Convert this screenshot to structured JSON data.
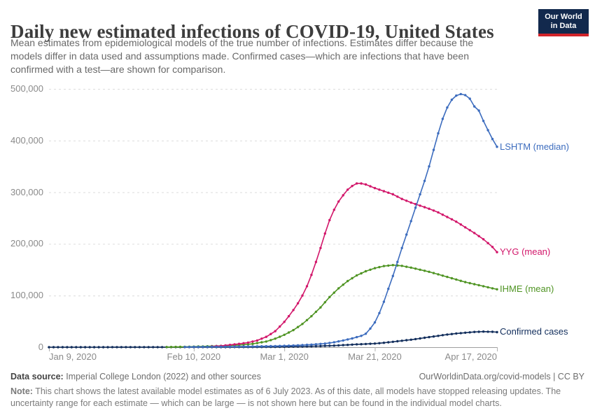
{
  "header": {
    "title": "Daily new estimated infections of COVID-19, United States",
    "subtitle_lines": [
      "Mean estimates from epidemiological models of the true number of infections. Estimates differ because the",
      "models differ in data used and assumptions made. Confirmed cases—which are infections that have been",
      "confirmed with a test—are shown for comparison."
    ],
    "logo": {
      "line1": "Our World",
      "line2": "in Data"
    }
  },
  "chart_data": {
    "type": "line",
    "title": "Daily new estimated infections of COVID-19, United States",
    "xlabel": "",
    "ylabel": "",
    "x_start_date": "Jan 9, 2020",
    "x_end_date": "Apr 17, 2020",
    "x_axis": {
      "ticks": [
        {
          "label": "Jan 9, 2020",
          "day": 0,
          "align": "left"
        },
        {
          "label": "Feb 10, 2020",
          "day": 32,
          "align": "center"
        },
        {
          "label": "Mar 1, 2020",
          "day": 52,
          "align": "center"
        },
        {
          "label": "Mar 21, 2020",
          "day": 72,
          "align": "center"
        },
        {
          "label": "Apr 17, 2020",
          "day": 99,
          "align": "right"
        }
      ]
    },
    "y_axis": {
      "range": [
        0,
        500000
      ],
      "ticks": [
        {
          "label": "0",
          "value": 0
        },
        {
          "label": "100,000",
          "value": 100000
        },
        {
          "label": "200,000",
          "value": 200000
        },
        {
          "label": "300,000",
          "value": 300000
        },
        {
          "label": "400,000",
          "value": 400000
        },
        {
          "label": "500,000",
          "value": 500000
        }
      ],
      "gridlines": "dashed"
    },
    "legend_position": "right-end-labels",
    "series": [
      {
        "name": "Confirmed cases",
        "color": "#122e5c",
        "points": [
          [
            0,
            50
          ],
          [
            10,
            60
          ],
          [
            20,
            80
          ],
          [
            30,
            120
          ],
          [
            35,
            150
          ],
          [
            40,
            200
          ],
          [
            45,
            300
          ],
          [
            50,
            600
          ],
          [
            55,
            1200
          ],
          [
            60,
            2200
          ],
          [
            64,
            3500
          ],
          [
            68,
            5500
          ],
          [
            72,
            7000
          ],
          [
            74,
            8500
          ],
          [
            76,
            10500
          ],
          [
            78,
            12500
          ],
          [
            80,
            14500
          ],
          [
            82,
            17000
          ],
          [
            84,
            19500
          ],
          [
            86,
            22000
          ],
          [
            88,
            24500
          ],
          [
            90,
            26500
          ],
          [
            92,
            28000
          ],
          [
            94,
            29500
          ],
          [
            96,
            30200
          ],
          [
            98,
            29800
          ],
          [
            99,
            29200
          ]
        ]
      },
      {
        "name": "IHME (mean)",
        "color": "#4f9423",
        "points": [
          [
            26,
            300
          ],
          [
            30,
            800
          ],
          [
            34,
            1500
          ],
          [
            38,
            2600
          ],
          [
            42,
            4200
          ],
          [
            45,
            6500
          ],
          [
            48,
            11000
          ],
          [
            50,
            16500
          ],
          [
            52,
            24000
          ],
          [
            54,
            33000
          ],
          [
            56,
            45000
          ],
          [
            58,
            60000
          ],
          [
            60,
            77000
          ],
          [
            62,
            97000
          ],
          [
            64,
            114000
          ],
          [
            66,
            128000
          ],
          [
            68,
            139000
          ],
          [
            70,
            147000
          ],
          [
            72,
            153000
          ],
          [
            74,
            157000
          ],
          [
            76,
            159000
          ],
          [
            78,
            157500
          ],
          [
            80,
            154000
          ],
          [
            82,
            150000
          ],
          [
            84,
            146000
          ],
          [
            86,
            141000
          ],
          [
            88,
            136000
          ],
          [
            90,
            131000
          ],
          [
            92,
            126000
          ],
          [
            94,
            122000
          ],
          [
            96,
            118000
          ],
          [
            98,
            114000
          ],
          [
            99,
            112000
          ]
        ]
      },
      {
        "name": "YYG (mean)",
        "color": "#d2166a",
        "points": [
          [
            36,
            1500
          ],
          [
            38,
            2500
          ],
          [
            40,
            4500
          ],
          [
            42,
            6500
          ],
          [
            44,
            9000
          ],
          [
            46,
            13000
          ],
          [
            48,
            20000
          ],
          [
            50,
            31000
          ],
          [
            52,
            49000
          ],
          [
            53,
            60000
          ],
          [
            54,
            72000
          ],
          [
            55,
            85000
          ],
          [
            56,
            100000
          ],
          [
            57,
            118000
          ],
          [
            58,
            140000
          ],
          [
            59,
            165000
          ],
          [
            60,
            192000
          ],
          [
            61,
            220000
          ],
          [
            62,
            246000
          ],
          [
            63,
            266000
          ],
          [
            64,
            282000
          ],
          [
            65,
            294000
          ],
          [
            66,
            305000
          ],
          [
            67,
            312000
          ],
          [
            68,
            317000
          ],
          [
            69,
            317000
          ],
          [
            70,
            315000
          ],
          [
            72,
            308000
          ],
          [
            74,
            302000
          ],
          [
            76,
            296000
          ],
          [
            78,
            287000
          ],
          [
            80,
            280000
          ],
          [
            82,
            274000
          ],
          [
            84,
            268000
          ],
          [
            86,
            261000
          ],
          [
            88,
            252000
          ],
          [
            90,
            243000
          ],
          [
            92,
            232000
          ],
          [
            94,
            221000
          ],
          [
            96,
            209000
          ],
          [
            98,
            194000
          ],
          [
            99,
            184000
          ]
        ]
      },
      {
        "name": "LSHTM (median)",
        "color": "#3c6cbe",
        "points": [
          [
            30,
            400
          ],
          [
            35,
            700
          ],
          [
            40,
            1000
          ],
          [
            45,
            1500
          ],
          [
            50,
            2200
          ],
          [
            54,
            3200
          ],
          [
            58,
            5000
          ],
          [
            61,
            7000
          ],
          [
            63,
            9500
          ],
          [
            65,
            13000
          ],
          [
            67,
            17000
          ],
          [
            69,
            22000
          ],
          [
            70,
            26000
          ],
          [
            71,
            36000
          ],
          [
            72,
            48000
          ],
          [
            73,
            66000
          ],
          [
            74,
            88000
          ],
          [
            75,
            113000
          ],
          [
            76,
            138000
          ],
          [
            77,
            165000
          ],
          [
            78,
            192000
          ],
          [
            79,
            218000
          ],
          [
            80,
            244000
          ],
          [
            81,
            270000
          ],
          [
            82,
            296000
          ],
          [
            83,
            322000
          ],
          [
            84,
            350000
          ],
          [
            85,
            382000
          ],
          [
            86,
            414000
          ],
          [
            87,
            442000
          ],
          [
            88,
            464000
          ],
          [
            89,
            479000
          ],
          [
            90,
            487000
          ],
          [
            91,
            490000
          ],
          [
            92,
            488000
          ],
          [
            93,
            481000
          ],
          [
            94,
            466000
          ],
          [
            95,
            458000
          ],
          [
            96,
            438000
          ],
          [
            97,
            420000
          ],
          [
            98,
            403000
          ],
          [
            99,
            388000
          ]
        ]
      }
    ]
  },
  "footer": {
    "source_label": "Data source:",
    "source_text": "Imperial College London (2022) and other sources",
    "attribution": "OurWorldinData.org/covid-models | CC BY",
    "note_label": "Note:",
    "note_lines": [
      "This chart shows the latest available model estimates as of 6 July 2023. As of this date, all models have stopped releasing updates. The",
      "uncertainty range for each estimate — which can be large — is not shown here but can be found in the individual model charts."
    ]
  }
}
